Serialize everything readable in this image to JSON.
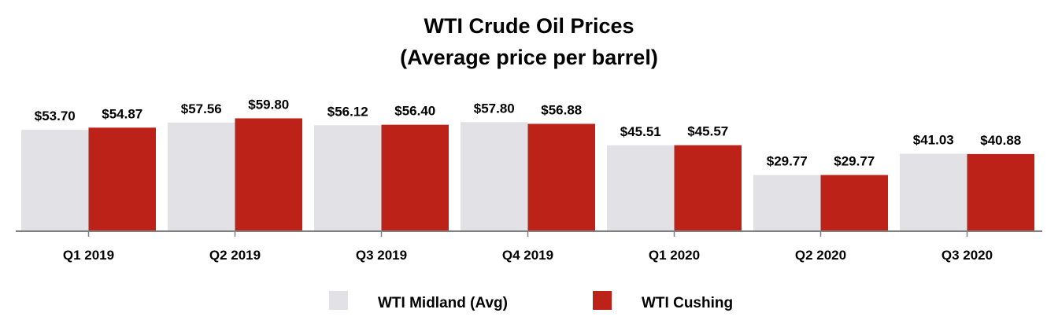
{
  "chart_data": {
    "type": "bar",
    "title": "WTI Crude Oil Prices",
    "subtitle": "(Average price per barrel)",
    "categories": [
      "Q1 2019",
      "Q2 2019",
      "Q3 2019",
      "Q4 2019",
      "Q1 2020",
      "Q2 2020",
      "Q3 2020"
    ],
    "series": [
      {
        "name": "WTI Midland (Avg)",
        "color": "#e1e1e6",
        "values": [
          53.7,
          57.56,
          56.12,
          57.8,
          45.51,
          29.77,
          41.03
        ],
        "labels": [
          "$53.70",
          "$57.56",
          "$56.12",
          "$57.80",
          "$45.51",
          "$29.77",
          "$41.03"
        ]
      },
      {
        "name": "WTI Cushing",
        "color": "#bd2219",
        "values": [
          54.87,
          59.8,
          56.4,
          56.88,
          45.57,
          29.77,
          40.88
        ],
        "labels": [
          "$54.87",
          "$59.80",
          "$56.40",
          "$56.88",
          "$45.57",
          "$29.77",
          "$40.88"
        ]
      }
    ],
    "xlabel": "",
    "ylabel": "",
    "ylim": [
      0,
      100
    ],
    "grid": false,
    "legend_position": "bottom-center"
  }
}
